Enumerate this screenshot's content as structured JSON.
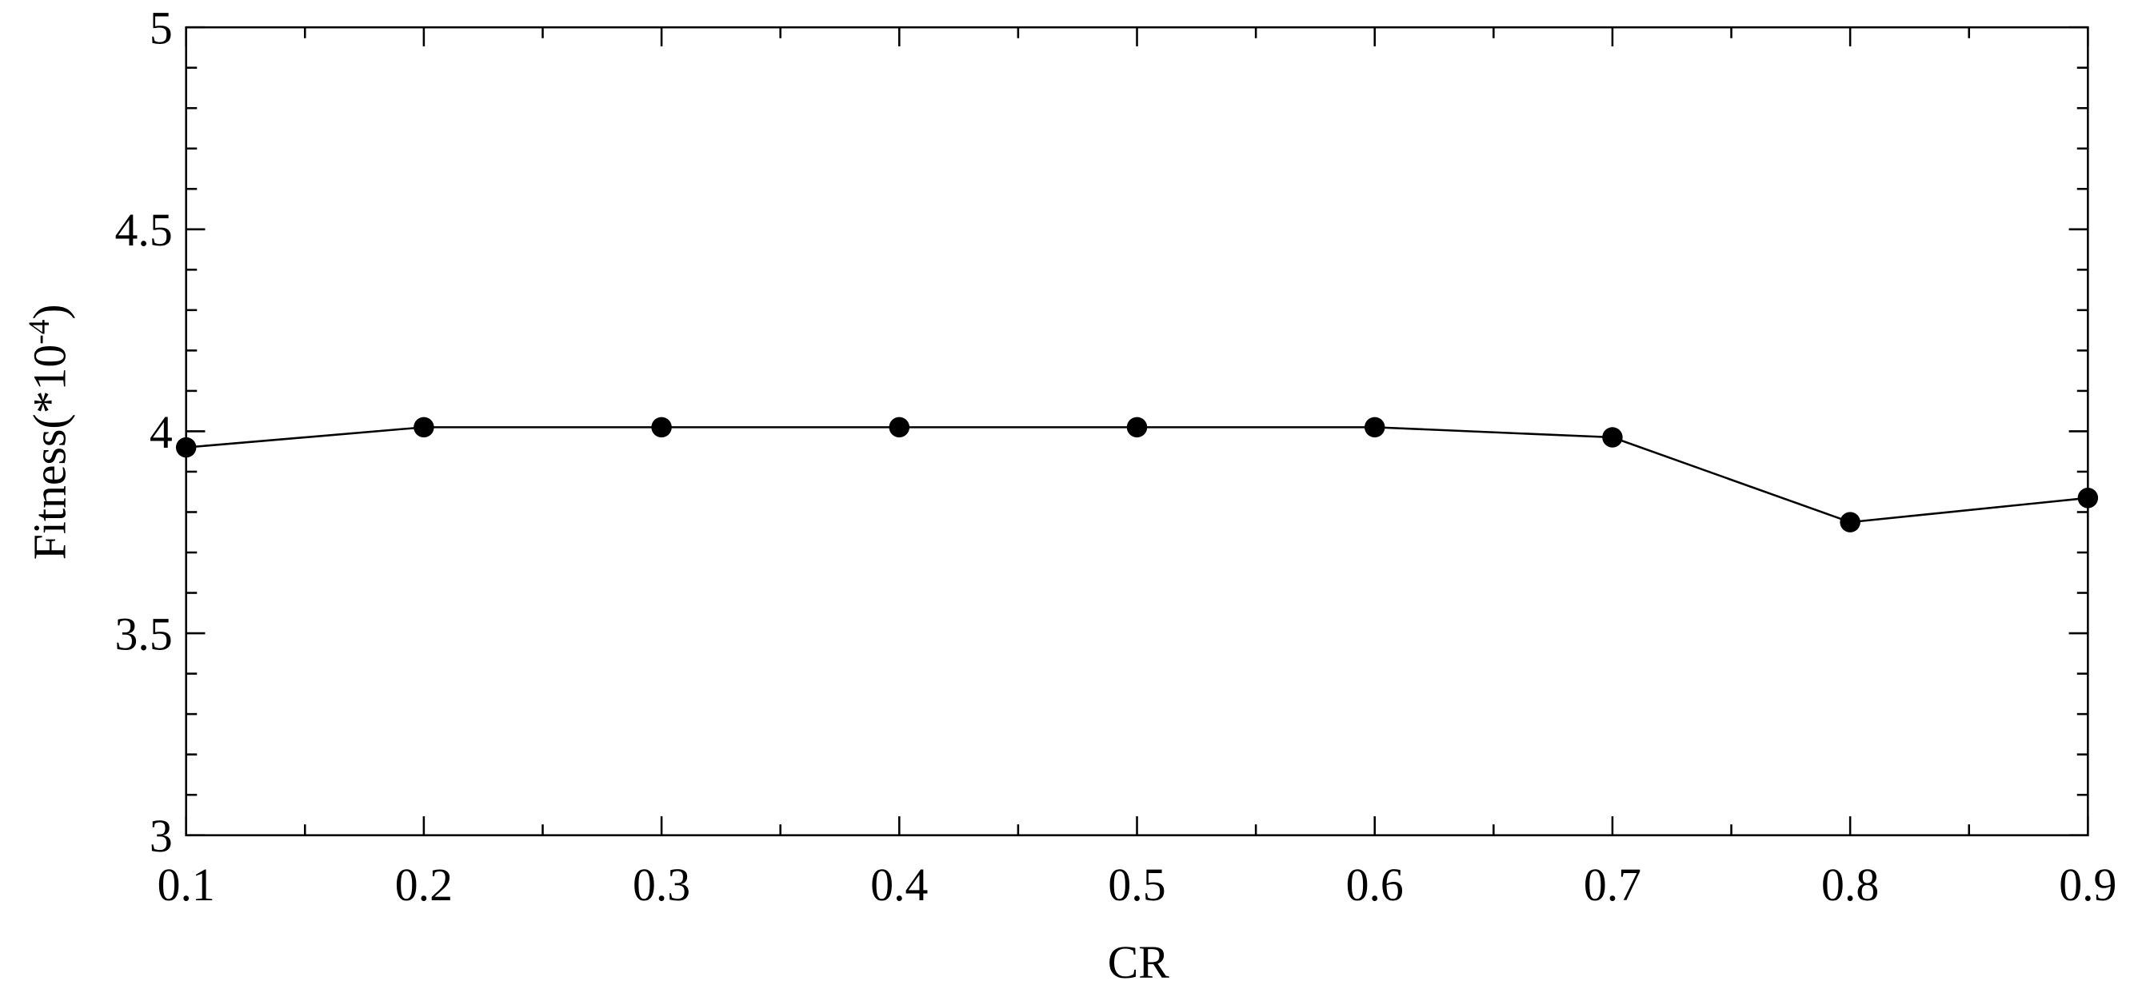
{
  "chart_data": {
    "type": "line",
    "xlabel": "CR",
    "ylabel": "Fitness(*10",
    "ylabel_exponent": "-4",
    "ylabel_suffix": ")",
    "x": [
      0.1,
      0.2,
      0.3,
      0.4,
      0.5,
      0.6,
      0.7,
      0.8,
      0.9
    ],
    "series": [
      {
        "name": "Fitness",
        "color": "#000000",
        "values": [
          3.96,
          4.01,
          4.01,
          4.01,
          4.01,
          4.01,
          3.985,
          3.775,
          3.835
        ]
      }
    ],
    "xlim": [
      0.1,
      0.9
    ],
    "xticks": [
      0.1,
      0.2,
      0.3,
      0.4,
      0.5,
      0.6,
      0.7,
      0.8,
      0.9
    ],
    "xminorticks": [
      0.15,
      0.25,
      0.35,
      0.45,
      0.55,
      0.65,
      0.75,
      0.85
    ],
    "ylim": [
      3,
      5
    ],
    "yticks": [
      3,
      3.5,
      4,
      4.5,
      5
    ],
    "yminorticks": [
      3.1,
      3.2,
      3.3,
      3.4,
      3.6,
      3.7,
      3.8,
      3.9,
      4.1,
      4.2,
      4.3,
      4.4,
      4.6,
      4.7,
      4.8,
      4.9
    ],
    "grid": false
  }
}
